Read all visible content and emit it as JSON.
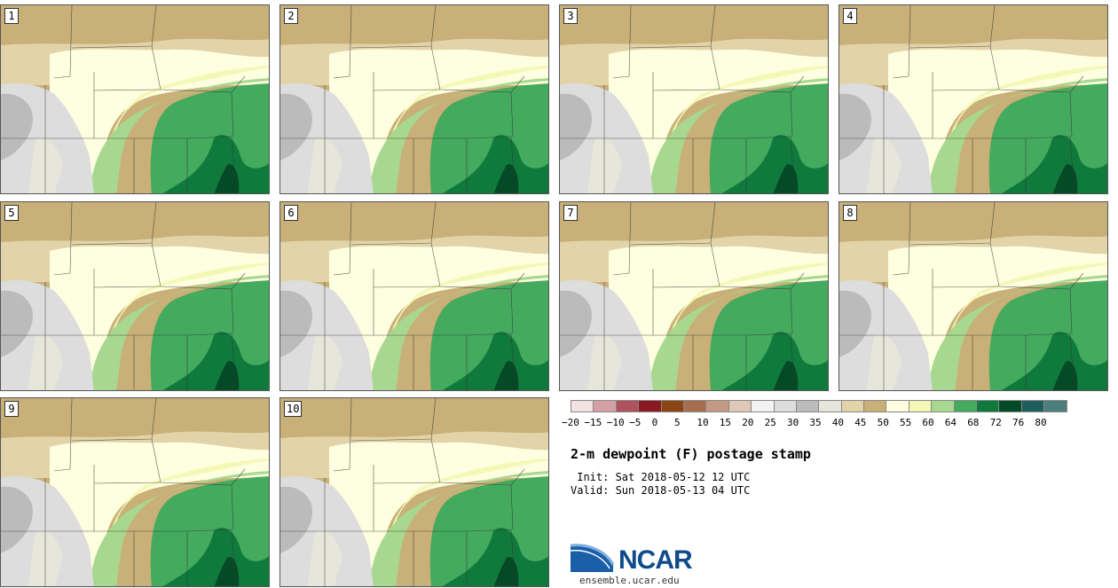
{
  "panels": [
    "1",
    "2",
    "3",
    "4",
    "5",
    "6",
    "7",
    "8",
    "9",
    "10"
  ],
  "legend": {
    "colors": [
      "#f3e2e4",
      "#d4a0a6",
      "#b0525e",
      "#8a1a22",
      "#8b4513",
      "#a76e50",
      "#c29a84",
      "#e0c8b8",
      "#f2f2f2",
      "#dddddd",
      "#bbbbbb",
      "#e6e6da",
      "#e2d4a8",
      "#c8b078",
      "#fefee0",
      "#f5f8b5",
      "#a8d88f",
      "#44aa5e",
      "#0f7a3c",
      "#054a26",
      "#1d5e5c",
      "#4e7f7f"
    ],
    "ticks": [
      "−20",
      "−15",
      "−10",
      "−5",
      "0",
      "5",
      "10",
      "15",
      "20",
      "25",
      "30",
      "35",
      "40",
      "45",
      "50",
      "55",
      "60",
      "64",
      "68",
      "72",
      "76",
      "80"
    ]
  },
  "title": "2-m dewpoint (F) postage stamp",
  "init": " Init: Sat 2018-05-12 12 UTC",
  "valid": "Valid: Sun 2018-05-13 04 UTC",
  "logo_text": "NCAR",
  "url": "ensemble.ucar.edu"
}
